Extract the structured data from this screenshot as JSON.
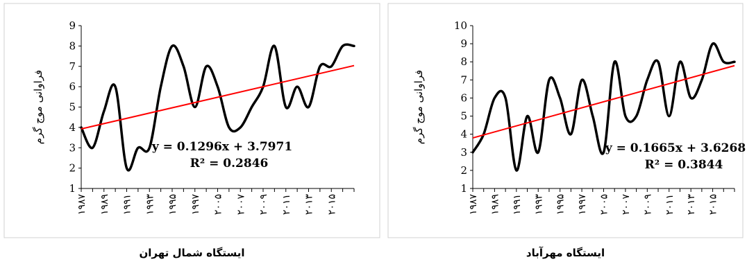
{
  "chart_data": [
    {
      "type": "line",
      "title": "ایستگاه شمال تهران",
      "ylabel": "فراوانی موج گرم",
      "xlabel": "",
      "ylim": [
        1,
        9
      ],
      "yticks": [
        1,
        2,
        3,
        4,
        5,
        6,
        7,
        8,
        9
      ],
      "xticklabels": [
        "۱۹۸۷",
        "۱۹۸۹",
        "۱۹۹۱",
        "۱۹۹۳",
        "۱۹۹۵",
        "۱۹۹۷",
        "۲۰۰۵",
        "۲۰۰۷",
        "۲۰۰۹",
        "۲۰۱۱",
        "۲۰۱۳",
        "۲۰۱۵"
      ],
      "x": [
        1,
        2,
        3,
        4,
        5,
        6,
        7,
        8,
        9,
        10,
        11,
        12,
        13,
        14,
        15,
        16,
        17,
        18,
        19,
        20,
        21,
        22,
        23,
        24,
        25
      ],
      "series": [
        {
          "values": [
            4,
            3,
            4.8,
            6,
            2,
            3,
            3,
            6,
            8,
            7,
            5,
            7,
            6,
            4,
            4,
            5,
            6,
            8,
            5,
            6,
            5,
            7,
            7,
            8,
            8
          ],
          "color": "#000000"
        }
      ],
      "trendline": {
        "slope": 0.1296,
        "intercept": 3.7971,
        "color": "#ff0000"
      },
      "equation": "y = 0.1296x + 3.7971",
      "r2": "R² = 0.2846",
      "grid": false
    },
    {
      "type": "line",
      "title": "ایستگاه مهرآباد",
      "ylabel": "فراوانی موج گرم",
      "xlabel": "",
      "ylim": [
        1,
        10
      ],
      "yticks": [
        1,
        2,
        3,
        4,
        5,
        6,
        7,
        8,
        9,
        10
      ],
      "xticklabels": [
        "۱۹۸۷",
        "۱۹۸۹",
        "۱۹۹۱",
        "۱۹۹۳",
        "۱۹۹۵",
        "۱۹۹۷",
        "۲۰۰۵",
        "۲۰۰۷",
        "۲۰۰۹",
        "۲۰۱۱",
        "۲۰۱۳",
        "۲۰۱۵"
      ],
      "x": [
        1,
        2,
        3,
        4,
        5,
        6,
        7,
        8,
        9,
        10,
        11,
        12,
        13,
        14,
        15,
        16,
        17,
        18,
        19,
        20,
        21,
        22,
        23,
        24,
        25
      ],
      "series": [
        {
          "values": [
            3,
            4,
            6,
            6,
            2,
            5,
            3,
            7,
            6,
            4,
            7,
            5,
            3,
            8,
            5,
            5,
            7,
            8,
            5,
            8,
            6,
            7,
            9,
            8,
            8
          ],
          "color": "#000000"
        }
      ],
      "trendline": {
        "slope": 0.1665,
        "intercept": 3.6268,
        "color": "#ff0000"
      },
      "equation": "y = 0.1665x + 3.6268",
      "r2": "R² = 0.3844",
      "grid": false
    }
  ]
}
